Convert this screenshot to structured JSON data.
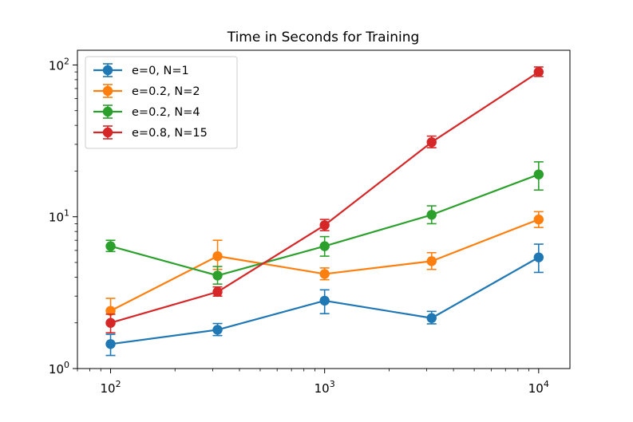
{
  "chart_data": {
    "type": "line",
    "title": "Time in Seconds for Training",
    "xlabel": "",
    "ylabel": "",
    "xscale": "log",
    "yscale": "log",
    "xlim": [
      70,
      14000
    ],
    "ylim": [
      1,
      125
    ],
    "legend_position": "top-left",
    "x": [
      100,
      316,
      1000,
      3162,
      10000
    ],
    "x_ticks": [
      {
        "value": 100,
        "base": "10",
        "exp": "2"
      },
      {
        "value": 1000,
        "base": "10",
        "exp": "3"
      },
      {
        "value": 10000,
        "base": "10",
        "exp": "4"
      }
    ],
    "y_ticks": [
      {
        "value": 1,
        "base": "10",
        "exp": "0"
      },
      {
        "value": 10,
        "base": "10",
        "exp": "1"
      },
      {
        "value": 100,
        "base": "10",
        "exp": "2"
      }
    ],
    "series": [
      {
        "name": "e=0, N=1",
        "color": "#1f77b4",
        "values": [
          1.45,
          1.8,
          2.8,
          2.15,
          5.4
        ],
        "err_low": [
          1.22,
          1.65,
          2.3,
          1.97,
          4.3
        ],
        "err_high": [
          1.68,
          1.98,
          3.3,
          2.38,
          6.6
        ]
      },
      {
        "name": "e=0.2, N=2",
        "color": "#ff7f0e",
        "values": [
          2.4,
          5.5,
          4.2,
          5.1,
          9.6
        ],
        "err_low": [
          1.95,
          4.5,
          3.85,
          4.5,
          8.5
        ],
        "err_high": [
          2.9,
          7.0,
          4.6,
          5.8,
          10.8
        ]
      },
      {
        "name": "e=0.2, N=4",
        "color": "#2ca02c",
        "values": [
          6.4,
          4.1,
          6.4,
          10.3,
          19
        ],
        "err_low": [
          5.9,
          3.6,
          5.5,
          9.0,
          15
        ],
        "err_high": [
          7.0,
          4.7,
          7.4,
          11.8,
          23
        ]
      },
      {
        "name": "e=0.8, N=15",
        "color": "#d62728",
        "values": [
          2.0,
          3.2,
          8.8,
          31,
          90
        ],
        "err_low": [
          1.72,
          3.0,
          8.1,
          28.5,
          84
        ],
        "err_high": [
          2.28,
          3.45,
          9.6,
          34,
          97
        ]
      }
    ]
  }
}
